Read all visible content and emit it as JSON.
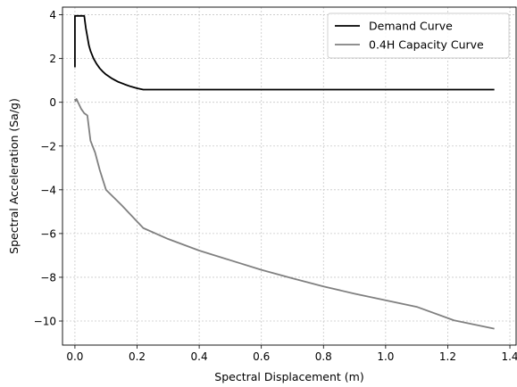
{
  "chart_data": {
    "type": "line",
    "xlabel": "Spectral Displacement (m)",
    "ylabel": "Spectral Acceleration (Sa/g)",
    "xlim": [
      -0.04,
      1.42
    ],
    "ylim": [
      -11.1,
      4.35
    ],
    "xticks": [
      0.0,
      0.2,
      0.4,
      0.6,
      0.8,
      1.0,
      1.2,
      1.4
    ],
    "xtick_labels": [
      "0.0",
      "0.2",
      "0.4",
      "0.6",
      "0.8",
      "1.0",
      "1.2",
      "1.4"
    ],
    "yticks": [
      4,
      2,
      0,
      -2,
      -4,
      -6,
      -8,
      -10
    ],
    "ytick_labels": [
      "4",
      "2",
      "0",
      "−2",
      "−4",
      "−6",
      "−8",
      "−10"
    ],
    "grid": true,
    "legend_position": "top-right",
    "series": [
      {
        "name": "Demand Curve",
        "color": "#000000",
        "points": [
          [
            0.0,
            1.6
          ],
          [
            0.0,
            3.95
          ],
          [
            0.03,
            3.95
          ],
          [
            0.035,
            3.4
          ],
          [
            0.04,
            3.0
          ],
          [
            0.045,
            2.6
          ],
          [
            0.05,
            2.35
          ],
          [
            0.06,
            2.0
          ],
          [
            0.07,
            1.75
          ],
          [
            0.08,
            1.55
          ],
          [
            0.09,
            1.4
          ],
          [
            0.1,
            1.27
          ],
          [
            0.12,
            1.08
          ],
          [
            0.14,
            0.93
          ],
          [
            0.16,
            0.82
          ],
          [
            0.18,
            0.72
          ],
          [
            0.2,
            0.64
          ],
          [
            0.22,
            0.58
          ],
          [
            1.35,
            0.58
          ]
        ]
      },
      {
        "name": "0.4H Capacity Curve",
        "color": "#808080",
        "points": [
          [
            0.0,
            0.15
          ],
          [
            0.002,
            0.05
          ],
          [
            0.005,
            0.15
          ],
          [
            0.01,
            0.0
          ],
          [
            0.02,
            -0.3
          ],
          [
            0.03,
            -0.5
          ],
          [
            0.04,
            -0.6
          ],
          [
            0.05,
            -1.75
          ],
          [
            0.065,
            -2.3
          ],
          [
            0.08,
            -3.1
          ],
          [
            0.1,
            -4.0
          ],
          [
            0.15,
            -4.7
          ],
          [
            0.19,
            -5.3
          ],
          [
            0.22,
            -5.75
          ],
          [
            0.3,
            -6.25
          ],
          [
            0.4,
            -6.78
          ],
          [
            0.5,
            -7.22
          ],
          [
            0.6,
            -7.66
          ],
          [
            0.7,
            -8.05
          ],
          [
            0.8,
            -8.42
          ],
          [
            0.9,
            -8.75
          ],
          [
            1.0,
            -9.05
          ],
          [
            1.1,
            -9.35
          ],
          [
            1.22,
            -9.97
          ],
          [
            1.35,
            -10.35
          ]
        ]
      }
    ]
  }
}
